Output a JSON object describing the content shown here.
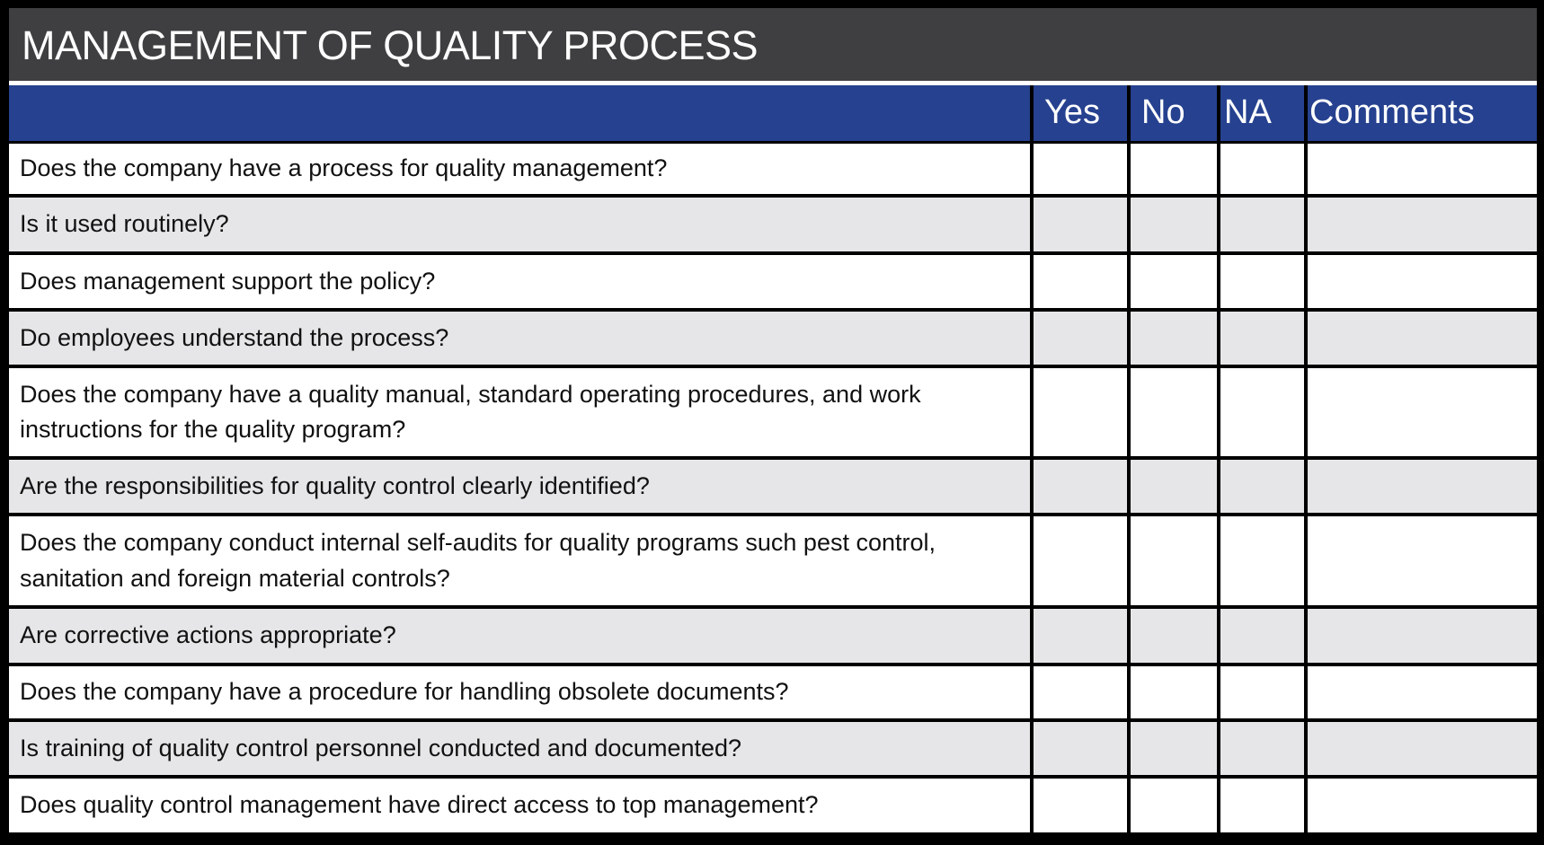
{
  "title": "MANAGEMENT OF QUALITY PROCESS",
  "columns": {
    "yes": "Yes",
    "no": "No",
    "na": "NA",
    "comments": "Comments"
  },
  "colors": {
    "title_bar": "#3f3f41",
    "header": "#26418f",
    "row_alt": "#e6e6e8"
  },
  "questions": [
    "Does the company have a process for quality management?",
    "Is it used routinely?",
    "Does management support the policy?",
    "Do employees understand the process?",
    "Does the company have a quality manual, standard operating procedures, and work instructions for the quality program?",
    "Are the responsibilities for quality control clearly identified?",
    "Does the company conduct internal self-audits for quality programs such pest control, sanitation and foreign material controls?",
    "Are corrective actions appropriate?",
    "Does the company have a procedure for handling obsolete documents?",
    "Is training of quality control personnel conducted and documented?",
    "Does quality control management have direct access to top management?"
  ]
}
